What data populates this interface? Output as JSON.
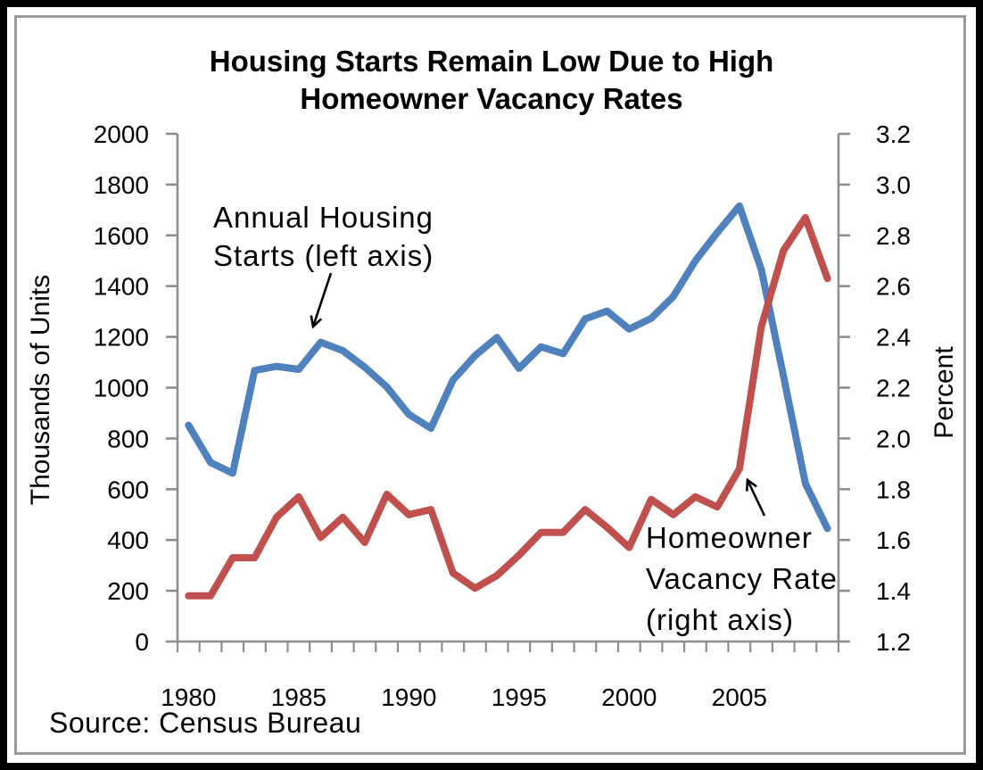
{
  "chart": {
    "title_lines": [
      "Housing Starts Remain Low Due to High",
      "Homeowner Vacancy Rates"
    ],
    "source_note": "Source: Census Bureau",
    "annotations": {
      "housing_starts": {
        "lines": [
          "Annual Housing",
          "Starts (left axis)"
        ]
      },
      "vacancy_rate": {
        "lines": [
          "Homeowner",
          "Vacancy Rate",
          "(right axis)"
        ]
      }
    }
  },
  "colors": {
    "housing_starts_line": "#4F81BD",
    "vacancy_rate_line": "#C0504D",
    "axis": "#8e8e8e",
    "text": "#000000",
    "inner_frame": "#9a9a9a",
    "outer_border": "#000000"
  },
  "chart_data": {
    "type": "line",
    "title": "Housing Starts Remain Low Due to High Homeowner Vacancy Rates",
    "x": [
      1980,
      1981,
      1982,
      1983,
      1984,
      1985,
      1986,
      1987,
      1988,
      1989,
      1990,
      1991,
      1992,
      1993,
      1994,
      1995,
      1996,
      1997,
      1998,
      1999,
      2000,
      2001,
      2002,
      2003,
      2004,
      2005,
      2006,
      2007,
      2008,
      2009
    ],
    "x_tick_labels": [
      "1980",
      "1985",
      "1990",
      "1995",
      "2000",
      "2005"
    ],
    "series": [
      {
        "name": "Annual Housing Starts",
        "axis": "left",
        "color": "#4F81BD",
        "values": [
          852,
          705,
          663,
          1068,
          1084,
          1072,
          1179,
          1146,
          1081,
          1003,
          895,
          840,
          1030,
          1126,
          1198,
          1076,
          1161,
          1134,
          1271,
          1302,
          1231,
          1273,
          1359,
          1499,
          1611,
          1716,
          1465,
          1046,
          622,
          445
        ]
      },
      {
        "name": "Homeowner Vacancy Rate",
        "axis": "right",
        "color": "#C0504D",
        "values": [
          1.38,
          1.38,
          1.53,
          1.53,
          1.69,
          1.77,
          1.61,
          1.69,
          1.59,
          1.78,
          1.7,
          1.72,
          1.47,
          1.41,
          1.46,
          1.54,
          1.63,
          1.63,
          1.72,
          1.65,
          1.57,
          1.76,
          1.7,
          1.77,
          1.73,
          1.88,
          2.44,
          2.74,
          2.87,
          2.63
        ]
      }
    ],
    "left_axis": {
      "label": "Thousands of Units",
      "min": 0,
      "max": 2000,
      "tick_step": 200,
      "tick_labels": [
        "0",
        "200",
        "400",
        "600",
        "800",
        "1000",
        "1200",
        "1400",
        "1600",
        "1800",
        "2000"
      ]
    },
    "right_axis": {
      "label": "Percent",
      "min": 1.2,
      "max": 3.2,
      "tick_step": 0.2,
      "tick_labels": [
        "1.2",
        "1.4",
        "1.6",
        "1.8",
        "2.0",
        "2.2",
        "2.4",
        "2.6",
        "2.8",
        "3.0",
        "3.2"
      ]
    },
    "grid": false,
    "legend_position": "none"
  }
}
